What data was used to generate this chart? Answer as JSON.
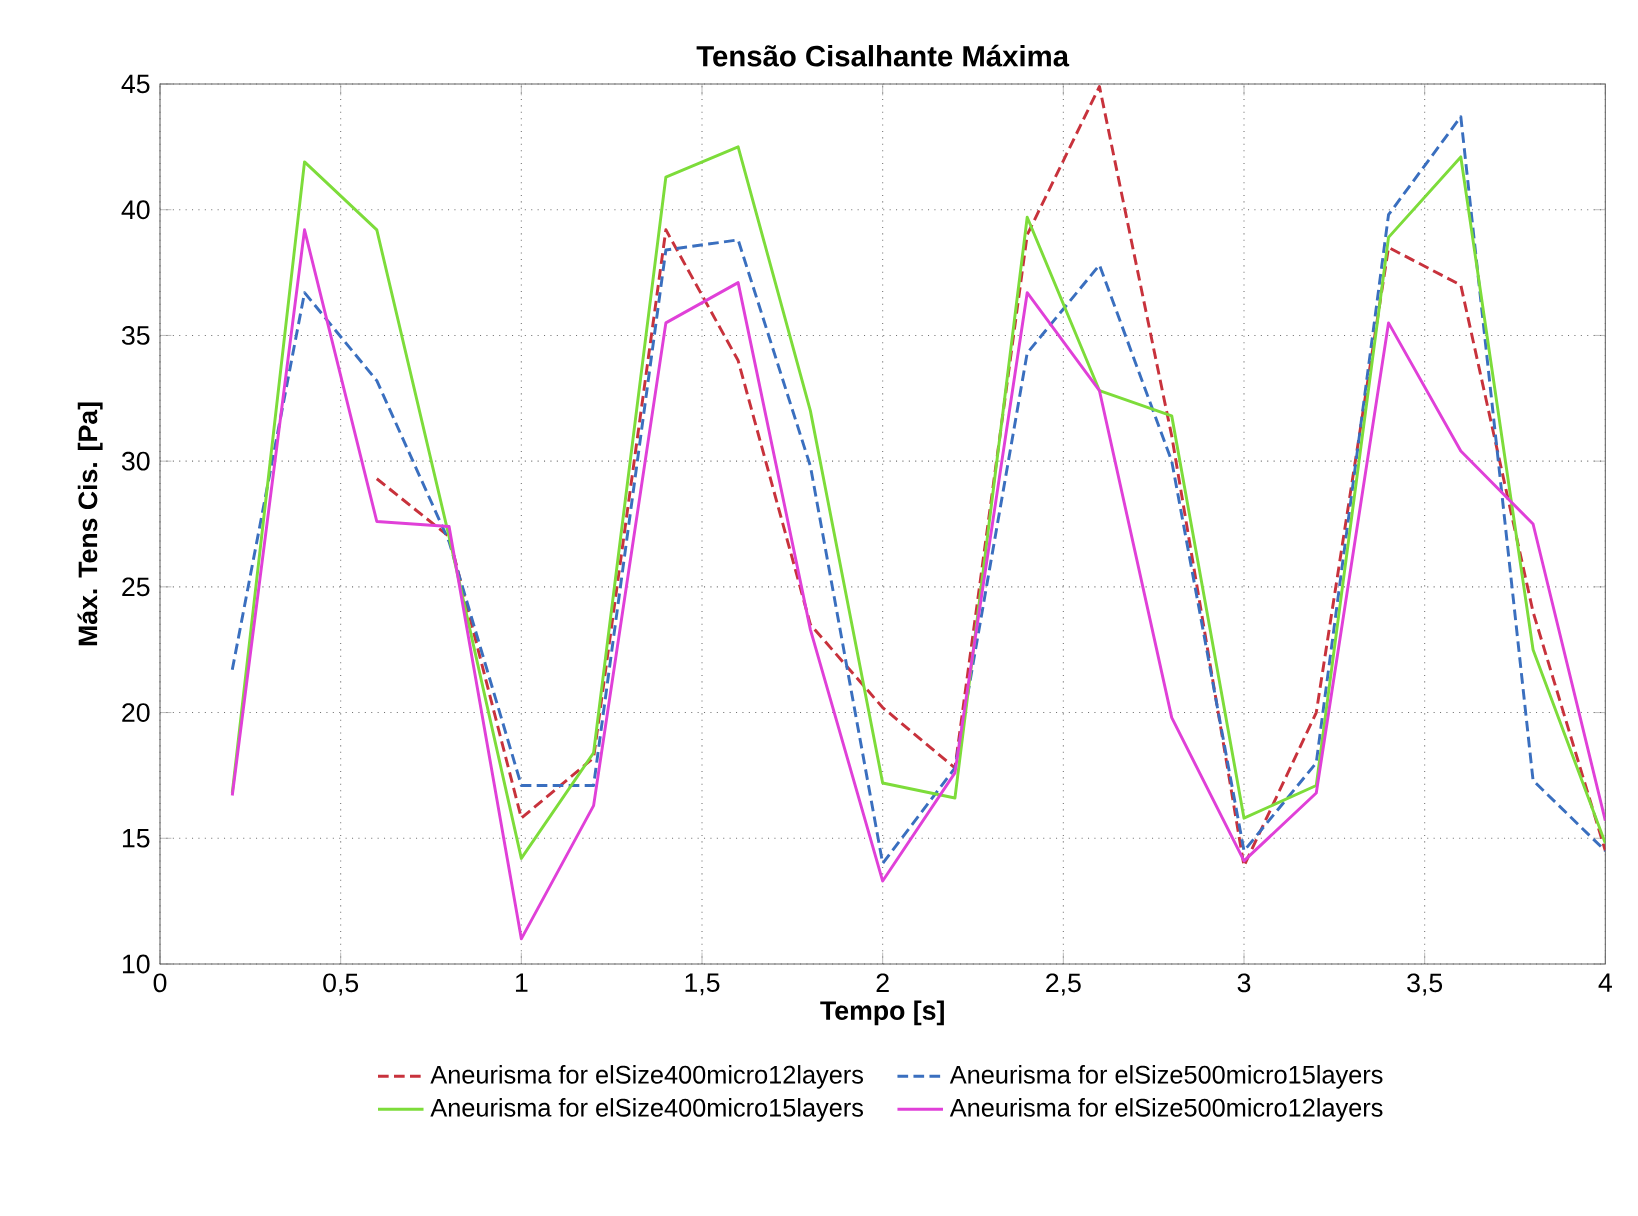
{
  "chart_data": {
    "type": "line",
    "title": "Tensão Cisalhante Máxima",
    "xlabel": "Tempo [s]",
    "ylabel": "Máx. Tens Cis. [Pa]",
    "x": [
      0.2,
      0.4,
      0.6,
      0.8,
      1.0,
      1.2,
      1.4,
      1.6,
      1.8,
      2.0,
      2.2,
      2.4,
      2.6,
      2.8,
      3.0,
      3.2,
      3.4,
      3.6,
      3.8,
      4.0
    ],
    "series": [
      {
        "name": "Aneurisma for elSize400micro12layers",
        "color": "#c8323c",
        "line_style": "dashed",
        "values": [
          null,
          null,
          29.3,
          27,
          15.8,
          18.2,
          39.2,
          34,
          23.5,
          20.2,
          17.8,
          39,
          44.9,
          31,
          13.9,
          20,
          38.5,
          37,
          24,
          14.5
        ]
      },
      {
        "name": "Aneurisma for elSize500micro15layers",
        "color": "#3a6fbf",
        "line_style": "dashed",
        "values": [
          21.7,
          36.7,
          33.2,
          26.8,
          17.1,
          17.1,
          38.4,
          38.8,
          29.8,
          14,
          17.8,
          34.3,
          37.8,
          30,
          14.5,
          18,
          39.8,
          43.7,
          17.3,
          14.5
        ]
      },
      {
        "name": "Aneurisma for elSize400micro15layers",
        "color": "#7ddc3a",
        "line_style": "solid",
        "values": [
          16.8,
          41.9,
          39.2,
          27,
          14.2,
          18.4,
          41.3,
          42.5,
          32,
          17.2,
          16.6,
          39.7,
          32.8,
          31.8,
          15.8,
          17.1,
          38.9,
          42.1,
          22.5,
          14.8
        ]
      },
      {
        "name": "Aneurisma for elSize500micro12layers",
        "color": "#e040d8",
        "line_style": "solid",
        "values": [
          16.7,
          39.2,
          27.6,
          27.4,
          11,
          16.3,
          35.5,
          37.1,
          23.3,
          13.3,
          17.6,
          36.7,
          32.8,
          19.8,
          14.1,
          16.8,
          35.5,
          30.4,
          27.5,
          15.7
        ]
      }
    ],
    "xlim": [
      0,
      4
    ],
    "ylim": [
      10,
      45
    ],
    "xticks": [
      0,
      {
        "value": 0.5,
        "label": "0,5"
      },
      1,
      {
        "value": 1.5,
        "label": "1,5"
      },
      2,
      {
        "value": 2.5,
        "label": "2,5"
      },
      3,
      {
        "value": 3.5,
        "label": "3,5"
      },
      4
    ],
    "yticks": [
      10,
      15,
      20,
      25,
      30,
      35,
      40,
      45
    ],
    "grid": true,
    "legend": "bottom",
    "marker": "none"
  }
}
